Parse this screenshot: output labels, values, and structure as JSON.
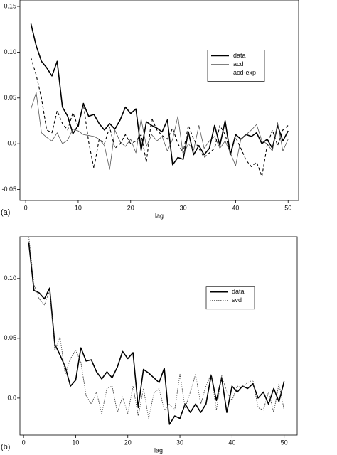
{
  "chart_data": [
    {
      "type": "line",
      "panel_label": "(a)",
      "x_label": "lag",
      "x": [
        1,
        2,
        3,
        4,
        5,
        6,
        7,
        8,
        9,
        10,
        11,
        12,
        13,
        14,
        15,
        16,
        17,
        18,
        19,
        20,
        21,
        22,
        23,
        24,
        25,
        26,
        27,
        28,
        29,
        30,
        31,
        32,
        33,
        34,
        35,
        36,
        37,
        38,
        39,
        40,
        41,
        42,
        43,
        44,
        45,
        46,
        47,
        48,
        49,
        50
      ],
      "xlim": [
        -1.1,
        52
      ],
      "xticks": [
        0,
        10,
        20,
        30,
        40,
        50
      ],
      "ylim": [
        -0.062,
        0.157
      ],
      "yticks": [
        -0.05,
        {
          "value": 0,
          "label": "0.0"
        },
        0.05,
        {
          "value": 0.1,
          "label": "0.10"
        },
        {
          "value": 0.15,
          "label": "0.15"
        }
      ],
      "legend": "center right",
      "series": [
        {
          "name": "data",
          "color": "#000000",
          "style": "thick",
          "values": [
            0.131,
            0.107,
            0.09,
            0.083,
            0.074,
            0.09,
            0.04,
            0.03,
            0.011,
            0.02,
            0.044,
            0.03,
            0.032,
            0.022,
            0.015,
            0.022,
            0.016,
            0.026,
            0.04,
            0.033,
            0.038,
            -0.007,
            0.024,
            0.02,
            0.017,
            0.013,
            0.026,
            -0.023,
            -0.015,
            -0.017,
            0.013,
            -0.012,
            -0.002,
            -0.012,
            -0.005,
            0.02,
            -0.002,
            0.025,
            -0.012,
            0.01,
            0.005,
            0.01,
            0.008,
            0.012,
            0.0,
            0.005,
            -0.005,
            0.02,
            0.003,
            0.014
          ]
        },
        {
          "name": "acd",
          "color": "#555555",
          "style": "thin",
          "values": [
            0.038,
            0.056,
            0.012,
            0.007,
            0.003,
            0.012,
            0.0,
            0.004,
            0.016,
            0.014,
            0.01,
            0.009,
            0.008,
            0.005,
            -0.002,
            -0.028,
            0.015,
            0.002,
            -0.003,
            0.005,
            -0.01,
            0.027,
            -0.003,
            0.01,
            0.003,
            0.008,
            -0.008,
            0.005,
            0.03,
            -0.012,
            0.0,
            -0.007,
            0.02,
            -0.005,
            0.003,
            0.008,
            -0.005,
            0.003,
            -0.01,
            -0.024,
            0.005,
            0.01,
            0.015,
            0.021,
            0.003,
            0.0,
            -0.008,
            0.023,
            -0.008,
            0.005
          ]
        },
        {
          "name": "acd-exp",
          "color": "#000000",
          "style": "dashed",
          "values": [
            0.094,
            0.075,
            0.05,
            0.015,
            0.012,
            0.036,
            0.022,
            0.015,
            0.034,
            0.018,
            0.043,
            0.002,
            -0.027,
            0.005,
            0.0,
            0.018,
            -0.005,
            0.0,
            0.01,
            0.0,
            0.003,
            0.01,
            -0.02,
            0.028,
            0.015,
            0.009,
            0.005,
            0.017,
            0.0,
            -0.01,
            0.02,
            0.005,
            -0.005,
            -0.015,
            -0.01,
            -0.005,
            0.02,
            0.01,
            -0.01,
            0.007,
            -0.005,
            -0.018,
            -0.025,
            -0.02,
            -0.036,
            -0.002,
            0.015,
            -0.002,
            0.015,
            0.02
          ]
        }
      ]
    },
    {
      "type": "line",
      "panel_label": "(b)",
      "x_label": "lag",
      "x": [
        1,
        2,
        3,
        4,
        5,
        6,
        7,
        8,
        9,
        10,
        11,
        12,
        13,
        14,
        15,
        16,
        17,
        18,
        19,
        20,
        21,
        22,
        23,
        24,
        25,
        26,
        27,
        28,
        29,
        30,
        31,
        32,
        33,
        34,
        35,
        36,
        37,
        38,
        39,
        40,
        41,
        42,
        43,
        44,
        45,
        46,
        47,
        48,
        49,
        50
      ],
      "xlim": [
        -0.7,
        52.5
      ],
      "xticks": [
        0,
        10,
        20,
        30,
        40,
        50
      ],
      "ylim": [
        -0.031,
        0.135
      ],
      "yticks": [
        {
          "value": 0,
          "label": "0.0"
        },
        0.05,
        {
          "value": 0.1,
          "label": "0.10"
        }
      ],
      "legend": "center right",
      "series": [
        {
          "name": "data",
          "color": "#000000",
          "style": "thick",
          "values": [
            0.13,
            0.09,
            0.088,
            0.083,
            0.092,
            0.045,
            0.036,
            0.026,
            0.01,
            0.015,
            0.042,
            0.031,
            0.032,
            0.022,
            0.016,
            0.022,
            0.017,
            0.026,
            0.039,
            0.033,
            0.038,
            -0.008,
            0.024,
            0.021,
            0.017,
            0.013,
            0.025,
            -0.022,
            -0.015,
            -0.017,
            -0.005,
            -0.012,
            -0.005,
            -0.012,
            -0.005,
            0.019,
            -0.002,
            0.017,
            -0.012,
            0.01,
            0.005,
            0.01,
            0.008,
            0.012,
            0.0,
            0.005,
            -0.005,
            0.008,
            -0.003,
            0.014
          ]
        },
        {
          "name": "svd",
          "color": "#444444",
          "style": "dotted",
          "values": [
            0.135,
            0.095,
            0.083,
            0.078,
            0.09,
            0.04,
            0.051,
            0.02,
            0.033,
            0.04,
            0.03,
            0.002,
            -0.005,
            0.005,
            -0.013,
            0.008,
            0.01,
            -0.012,
            0.001,
            -0.013,
            0.01,
            -0.015,
            0.008,
            -0.017,
            0.004,
            0.008,
            -0.01,
            -0.005,
            -0.01,
            0.02,
            -0.008,
            0.005,
            0.02,
            -0.005,
            0.01,
            0.02,
            -0.01,
            0.019,
            0.005,
            -0.002,
            0.01,
            0.009,
            0.013,
            0.015,
            -0.008,
            -0.01,
            0.005,
            -0.012,
            0.012,
            -0.01
          ]
        }
      ]
    }
  ]
}
